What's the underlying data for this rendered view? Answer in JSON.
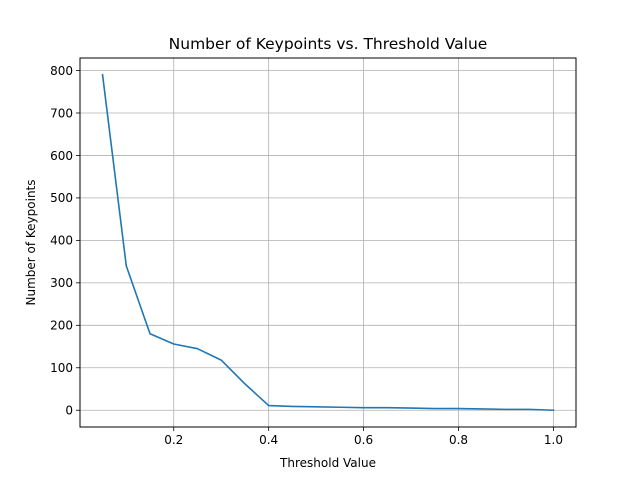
{
  "chart_data": {
    "type": "line",
    "title": "Number of Keypoints vs. Threshold Value",
    "xlabel": "Threshold Value",
    "ylabel": "Number of Keypoints",
    "xlim": [
      0.0025,
      1.0475
    ],
    "ylim": [
      -39.5,
      829.5
    ],
    "xticks": [
      0.2,
      0.4,
      0.6,
      0.8,
      1.0
    ],
    "xtick_labels": [
      "0.2",
      "0.4",
      "0.6",
      "0.8",
      "1.0"
    ],
    "yticks": [
      0,
      100,
      200,
      300,
      400,
      500,
      600,
      700,
      800
    ],
    "ytick_labels": [
      "0",
      "100",
      "200",
      "300",
      "400",
      "500",
      "600",
      "700",
      "800"
    ],
    "grid": true,
    "series": [
      {
        "color": "#1f77b4",
        "x": [
          0.05,
          0.1,
          0.15,
          0.2,
          0.25,
          0.3,
          0.35,
          0.4,
          0.45,
          0.5,
          0.55,
          0.6,
          0.65,
          0.7,
          0.75,
          0.8,
          0.85,
          0.9,
          0.95,
          1.0
        ],
        "y": [
          790,
          340,
          180,
          156,
          145,
          118,
          62,
          11,
          9,
          8,
          7,
          6,
          6,
          5,
          4,
          4,
          3,
          2,
          2,
          0
        ]
      }
    ]
  }
}
